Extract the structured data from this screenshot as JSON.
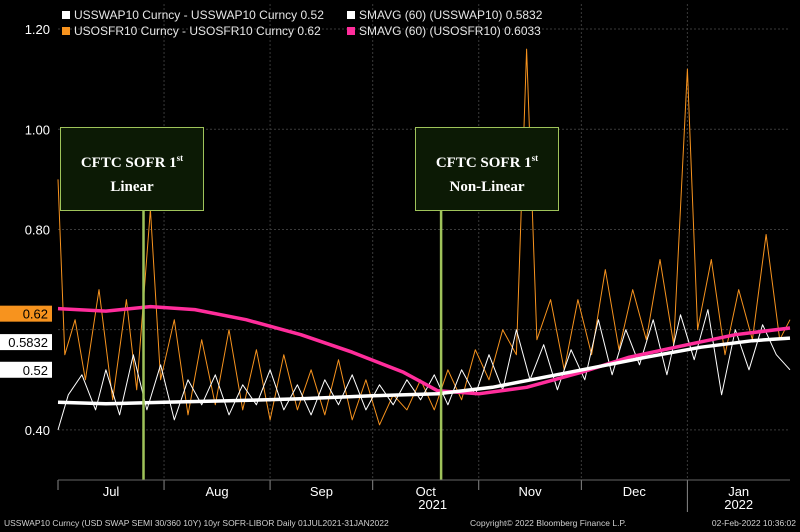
{
  "legend": {
    "items": [
      {
        "label": "USSWAP10 Curncy - USSWAP10 Curncy 0.52",
        "color": "#ffffff"
      },
      {
        "label": "SMAVG (60) (USSWAP10) 0.5832",
        "color": "#ffffff"
      },
      {
        "label": "USOSFR10 Curncy - USOSFR10 Curncy 0.62",
        "color": "#f7931e"
      },
      {
        "label": "SMAVG (60) (USOSFR10) 0.6033",
        "color": "#ff2d9b"
      }
    ]
  },
  "callouts": [
    {
      "line1": "CFTC SOFR 1",
      "sup": "st",
      "line2": "Linear",
      "date": "2021-07-26"
    },
    {
      "line1": "CFTC SOFR 1",
      "sup": "st",
      "line2": "Non-Linear",
      "date": "2021-10-21"
    }
  ],
  "footer": {
    "left": "USSWAP10 Curncy (USD SWAP SEMI 30/360 10Y) 10yr SOFR-LIBOR  Daily 01JUL2021-31JAN2022",
    "center": "Copyright© 2022 Bloomberg Finance L.P.",
    "right": "02-Feb-2022 10:36:02"
  },
  "chart_data": {
    "type": "line",
    "x_range": [
      "2021-07-01",
      "2022-01-31"
    ],
    "ylim": [
      0.3,
      1.25
    ],
    "y_ticks": [
      "0.40",
      "0.80",
      "1.00",
      "1.20"
    ],
    "x_month_labels": [
      "Jul",
      "Aug",
      "Sep",
      "Oct",
      "Nov",
      "Dec",
      "Jan"
    ],
    "x_year_labels": [
      "2021",
      "2022"
    ],
    "grid": true,
    "legend_position": "top-left",
    "value_tags": [
      {
        "text": "0.62",
        "value": 0.62,
        "bg": "#f7931e",
        "color": "#000000"
      },
      {
        "text": "0.5832",
        "value": 0.5832,
        "bg": "#ffffff",
        "color": "#000000"
      },
      {
        "text": "0.52",
        "value": 0.52,
        "bg": "#ffffff",
        "color": "#000000"
      }
    ],
    "series": [
      {
        "name": "USSWAP10 Curncy - USSWAP10 Curncy",
        "color": "#ffffff",
        "style": "thin",
        "points": [
          [
            "2021-07-01",
            0.4
          ],
          [
            "2021-07-04",
            0.47
          ],
          [
            "2021-07-08",
            0.51
          ],
          [
            "2021-07-12",
            0.44
          ],
          [
            "2021-07-15",
            0.52
          ],
          [
            "2021-07-19",
            0.43
          ],
          [
            "2021-07-23",
            0.55
          ],
          [
            "2021-07-27",
            0.44
          ],
          [
            "2021-07-31",
            0.53
          ],
          [
            "2021-08-04",
            0.42
          ],
          [
            "2021-08-08",
            0.5
          ],
          [
            "2021-08-12",
            0.45
          ],
          [
            "2021-08-16",
            0.51
          ],
          [
            "2021-08-20",
            0.43
          ],
          [
            "2021-08-24",
            0.49
          ],
          [
            "2021-08-28",
            0.45
          ],
          [
            "2021-09-01",
            0.52
          ],
          [
            "2021-09-05",
            0.44
          ],
          [
            "2021-09-09",
            0.49
          ],
          [
            "2021-09-13",
            0.43
          ],
          [
            "2021-09-17",
            0.5
          ],
          [
            "2021-09-21",
            0.45
          ],
          [
            "2021-09-25",
            0.51
          ],
          [
            "2021-09-29",
            0.44
          ],
          [
            "2021-10-03",
            0.49
          ],
          [
            "2021-10-07",
            0.45
          ],
          [
            "2021-10-11",
            0.5
          ],
          [
            "2021-10-15",
            0.46
          ],
          [
            "2021-10-19",
            0.51
          ],
          [
            "2021-10-23",
            0.45
          ],
          [
            "2021-10-27",
            0.52
          ],
          [
            "2021-10-31",
            0.47
          ],
          [
            "2021-11-04",
            0.55
          ],
          [
            "2021-11-08",
            0.48
          ],
          [
            "2021-11-12",
            0.6
          ],
          [
            "2021-11-16",
            0.5
          ],
          [
            "2021-11-20",
            0.57
          ],
          [
            "2021-11-24",
            0.48
          ],
          [
            "2021-11-28",
            0.56
          ],
          [
            "2021-12-02",
            0.5
          ],
          [
            "2021-12-06",
            0.62
          ],
          [
            "2021-12-10",
            0.51
          ],
          [
            "2021-12-14",
            0.6
          ],
          [
            "2021-12-18",
            0.53
          ],
          [
            "2021-12-22",
            0.62
          ],
          [
            "2021-12-26",
            0.51
          ],
          [
            "2021-12-30",
            0.63
          ],
          [
            "2022-01-03",
            0.54
          ],
          [
            "2022-01-07",
            0.64
          ],
          [
            "2022-01-11",
            0.47
          ],
          [
            "2022-01-15",
            0.6
          ],
          [
            "2022-01-19",
            0.52
          ],
          [
            "2022-01-23",
            0.61
          ],
          [
            "2022-01-27",
            0.55
          ],
          [
            "2022-01-31",
            0.52
          ]
        ]
      },
      {
        "name": "USOSFR10 Curncy - USOSFR10 Curncy",
        "color": "#f7931e",
        "style": "thin",
        "points": [
          [
            "2021-07-01",
            0.9
          ],
          [
            "2021-07-03",
            0.55
          ],
          [
            "2021-07-06",
            0.62
          ],
          [
            "2021-07-09",
            0.5
          ],
          [
            "2021-07-13",
            0.68
          ],
          [
            "2021-07-17",
            0.46
          ],
          [
            "2021-07-21",
            0.66
          ],
          [
            "2021-07-24",
            0.48
          ],
          [
            "2021-07-28",
            0.84
          ],
          [
            "2021-07-31",
            0.5
          ],
          [
            "2021-08-04",
            0.62
          ],
          [
            "2021-08-08",
            0.43
          ],
          [
            "2021-08-12",
            0.58
          ],
          [
            "2021-08-16",
            0.45
          ],
          [
            "2021-08-20",
            0.6
          ],
          [
            "2021-08-24",
            0.44
          ],
          [
            "2021-08-28",
            0.56
          ],
          [
            "2021-09-01",
            0.42
          ],
          [
            "2021-09-05",
            0.55
          ],
          [
            "2021-09-09",
            0.44
          ],
          [
            "2021-09-13",
            0.52
          ],
          [
            "2021-09-17",
            0.43
          ],
          [
            "2021-09-21",
            0.54
          ],
          [
            "2021-09-25",
            0.42
          ],
          [
            "2021-09-29",
            0.5
          ],
          [
            "2021-10-03",
            0.41
          ],
          [
            "2021-10-07",
            0.47
          ],
          [
            "2021-10-11",
            0.44
          ],
          [
            "2021-10-15",
            0.5
          ],
          [
            "2021-10-19",
            0.44
          ],
          [
            "2021-10-23",
            0.52
          ],
          [
            "2021-10-27",
            0.46
          ],
          [
            "2021-10-31",
            0.56
          ],
          [
            "2021-11-04",
            0.5
          ],
          [
            "2021-11-08",
            0.6
          ],
          [
            "2021-11-12",
            0.55
          ],
          [
            "2021-11-15",
            1.16
          ],
          [
            "2021-11-18",
            0.58
          ],
          [
            "2021-11-22",
            0.66
          ],
          [
            "2021-11-26",
            0.52
          ],
          [
            "2021-11-30",
            0.66
          ],
          [
            "2021-12-04",
            0.55
          ],
          [
            "2021-12-08",
            0.72
          ],
          [
            "2021-12-12",
            0.56
          ],
          [
            "2021-12-16",
            0.68
          ],
          [
            "2021-12-20",
            0.58
          ],
          [
            "2021-12-24",
            0.74
          ],
          [
            "2021-12-28",
            0.57
          ],
          [
            "2022-01-01",
            1.12
          ],
          [
            "2022-01-04",
            0.6
          ],
          [
            "2022-01-08",
            0.74
          ],
          [
            "2022-01-12",
            0.55
          ],
          [
            "2022-01-16",
            0.68
          ],
          [
            "2022-01-20",
            0.58
          ],
          [
            "2022-01-24",
            0.79
          ],
          [
            "2022-01-28",
            0.58
          ],
          [
            "2022-01-31",
            0.62
          ]
        ]
      },
      {
        "name": "SMAVG (60) (USSWAP10)",
        "color": "#ffffff",
        "style": "thick",
        "points": [
          [
            "2021-07-01",
            0.455
          ],
          [
            "2021-07-15",
            0.452
          ],
          [
            "2021-08-01",
            0.455
          ],
          [
            "2021-08-20",
            0.458
          ],
          [
            "2021-09-10",
            0.462
          ],
          [
            "2021-10-01",
            0.468
          ],
          [
            "2021-10-20",
            0.472
          ],
          [
            "2021-11-05",
            0.485
          ],
          [
            "2021-11-20",
            0.505
          ],
          [
            "2021-12-05",
            0.525
          ],
          [
            "2021-12-20",
            0.545
          ],
          [
            "2022-01-05",
            0.565
          ],
          [
            "2022-01-20",
            0.578
          ],
          [
            "2022-01-31",
            0.5832
          ]
        ]
      },
      {
        "name": "SMAVG (60) (USOSFR10)",
        "color": "#ff2d9b",
        "style": "thick",
        "points": [
          [
            "2021-07-01",
            0.642
          ],
          [
            "2021-07-15",
            0.637
          ],
          [
            "2021-07-28",
            0.646
          ],
          [
            "2021-08-10",
            0.64
          ],
          [
            "2021-08-25",
            0.62
          ],
          [
            "2021-09-10",
            0.59
          ],
          [
            "2021-09-25",
            0.555
          ],
          [
            "2021-10-10",
            0.515
          ],
          [
            "2021-10-20",
            0.478
          ],
          [
            "2021-11-01",
            0.472
          ],
          [
            "2021-11-15",
            0.485
          ],
          [
            "2021-12-01",
            0.515
          ],
          [
            "2021-12-15",
            0.545
          ],
          [
            "2022-01-01",
            0.57
          ],
          [
            "2022-01-15",
            0.59
          ],
          [
            "2022-01-31",
            0.6033
          ]
        ]
      }
    ]
  }
}
